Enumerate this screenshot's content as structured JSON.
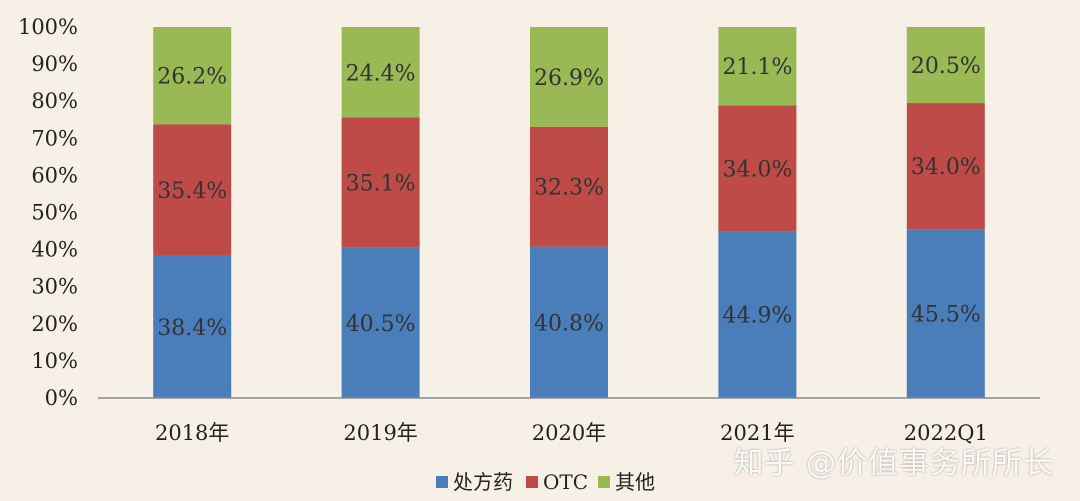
{
  "chart_data": {
    "type": "bar",
    "stacked": true,
    "categories": [
      "2018年",
      "2019年",
      "2020年",
      "2021年",
      "2022Q1"
    ],
    "series": [
      {
        "name": "处方药",
        "color": "#4a7ebb",
        "values": [
          38.4,
          40.5,
          40.8,
          44.9,
          45.5
        ],
        "labels": [
          "38.4%",
          "40.5%",
          "40.8%",
          "44.9%",
          "45.5%"
        ]
      },
      {
        "name": "OTC",
        "color": "#be4b48",
        "values": [
          35.4,
          35.1,
          32.3,
          34.0,
          34.0
        ],
        "labels": [
          "35.4%",
          "35.1%",
          "32.3%",
          "34.0%",
          "34.0%"
        ]
      },
      {
        "name": "其他",
        "color": "#98b954",
        "values": [
          26.2,
          24.4,
          26.9,
          21.1,
          20.5
        ],
        "labels": [
          "26.2%",
          "24.4%",
          "26.9%",
          "21.1%",
          "20.5%"
        ]
      }
    ],
    "yticks": [
      "0%",
      "10%",
      "20%",
      "30%",
      "40%",
      "50%",
      "60%",
      "70%",
      "80%",
      "90%",
      "100%"
    ],
    "ylim": [
      0,
      100
    ],
    "legend": "bottom",
    "grid": false
  },
  "watermark": "知乎 @价值事务所所长"
}
